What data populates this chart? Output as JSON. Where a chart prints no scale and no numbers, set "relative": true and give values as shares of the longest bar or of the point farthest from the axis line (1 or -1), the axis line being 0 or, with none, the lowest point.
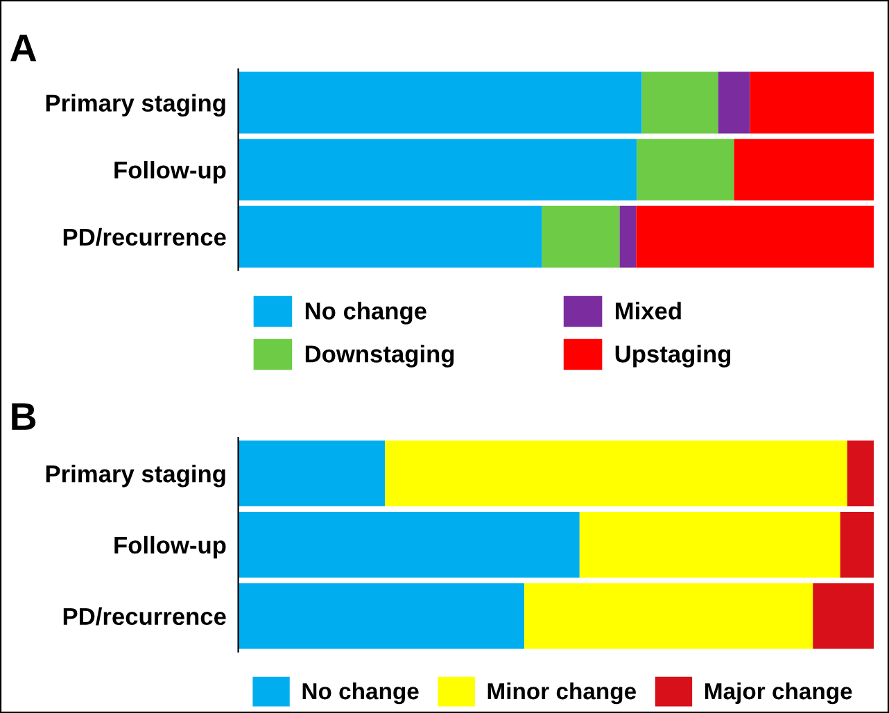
{
  "chart_data": [
    {
      "type": "bar",
      "title": "A",
      "orientation": "horizontal",
      "stacked": true,
      "relative": true,
      "legend": "bottom",
      "grid": false,
      "categories": [
        "Primary staging",
        "Follow-up",
        "PD/recurrence"
      ],
      "series": [
        {
          "name": "No change",
          "color": "#00aeef",
          "values": [
            0.635,
            0.627,
            0.478
          ]
        },
        {
          "name": "Downstaging",
          "color": "#6dcb45",
          "values": [
            0.12,
            0.153,
            0.122
          ]
        },
        {
          "name": "Mixed",
          "color": "#7b2c9e",
          "values": [
            0.05,
            0,
            0.026
          ]
        },
        {
          "name": "Upstaging",
          "color": "#ff0000",
          "values": [
            0.195,
            0.22,
            0.374
          ]
        }
      ]
    },
    {
      "type": "bar",
      "title": "B",
      "orientation": "horizontal",
      "stacked": true,
      "relative": true,
      "legend": "bottom",
      "grid": false,
      "categories": [
        "Primary staging",
        "Follow-up",
        "PD/recurrence"
      ],
      "series": [
        {
          "name": "No change",
          "color": "#00aeef",
          "values": [
            0.231,
            0.537,
            0.45
          ]
        },
        {
          "name": "Minor change",
          "color": "#ffff00",
          "values": [
            0.727,
            0.41,
            0.454
          ]
        },
        {
          "name": "Major change",
          "color": "#d7101a",
          "values": [
            0.042,
            0.053,
            0.096
          ]
        }
      ]
    }
  ]
}
